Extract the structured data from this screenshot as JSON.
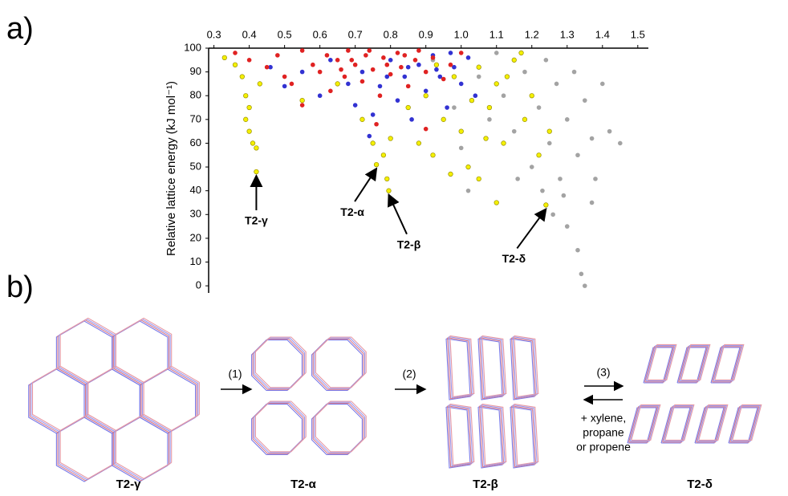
{
  "panel_labels": [
    "a)",
    "b)"
  ],
  "chart_data": {
    "type": "scatter",
    "y_label": "Relative lattice energy (kJ mol⁻¹)",
    "xlim": [
      0.285,
      1.53
    ],
    "ylim": [
      -3,
      100
    ],
    "xticks": [
      0.3,
      0.4,
      0.5,
      0.6,
      0.7,
      0.8,
      0.9,
      {
        "value": 1,
        "label": "1.0"
      },
      1.1,
      1.2,
      1.3,
      1.4,
      1.5
    ],
    "yticks": [
      0,
      10,
      20,
      30,
      40,
      50,
      60,
      70,
      80,
      90,
      100
    ],
    "series": [
      {
        "color": "#a3a3a3",
        "x": [
          0.92,
          0.98,
          1.0,
          1.02,
          1.05,
          1.08,
          1.1,
          1.12,
          1.15,
          1.18,
          1.2,
          1.22,
          1.24,
          1.25,
          1.27,
          1.28,
          1.3,
          1.3,
          1.32,
          1.33,
          1.33,
          1.34,
          1.35,
          1.35,
          1.37,
          1.38,
          1.4,
          1.42,
          1.45,
          1.37,
          1.29,
          1.26,
          1.16,
          1.23
        ],
        "values": [
          95,
          75,
          58,
          40,
          88,
          70,
          98,
          80,
          65,
          90,
          50,
          75,
          95,
          60,
          85,
          45,
          70,
          25,
          90,
          15,
          55,
          5,
          0,
          78,
          62,
          45,
          85,
          65,
          60,
          35,
          38,
          30,
          45,
          40
        ]
      },
      {
        "color": "#f4f000",
        "x": [
          0.33,
          0.36,
          0.38,
          0.39,
          0.39,
          0.4,
          0.41,
          0.42,
          0.42,
          0.4,
          0.43,
          0.76,
          0.78,
          0.79,
          0.795,
          0.55,
          0.65,
          0.72,
          0.75,
          0.8,
          0.85,
          0.88,
          0.9,
          0.92,
          0.95,
          0.98,
          1.0,
          1.02,
          1.05,
          1.08,
          1.1,
          1.12,
          1.15,
          1.18,
          1.2,
          1.22,
          1.24,
          1.25,
          1.1,
          1.05,
          0.97,
          1.13,
          1.17,
          1.03,
          0.93,
          1.07
        ],
        "values": [
          96,
          93,
          88,
          80,
          70,
          65,
          60,
          58,
          48,
          75,
          85,
          51,
          55,
          45,
          40,
          78,
          85,
          70,
          60,
          62,
          75,
          60,
          80,
          55,
          70,
          88,
          65,
          50,
          92,
          75,
          85,
          60,
          95,
          70,
          80,
          55,
          34,
          65,
          35,
          45,
          47,
          88,
          98,
          78,
          93,
          62
        ]
      },
      {
        "color": "#3232d2",
        "x": [
          0.46,
          0.5,
          0.55,
          0.6,
          0.63,
          0.68,
          0.7,
          0.72,
          0.75,
          0.77,
          0.8,
          0.82,
          0.84,
          0.86,
          0.88,
          0.9,
          0.92,
          0.94,
          0.96,
          0.98,
          1.0,
          1.02,
          1.04,
          0.74,
          0.85,
          0.93,
          0.97,
          0.79
        ],
        "values": [
          92,
          84,
          90,
          80,
          95,
          85,
          76,
          90,
          72,
          84,
          95,
          78,
          88,
          70,
          93,
          82,
          97,
          88,
          75,
          92,
          85,
          96,
          80,
          63,
          92,
          91,
          98,
          88
        ]
      },
      {
        "color": "#e02222",
        "x": [
          0.36,
          0.4,
          0.45,
          0.48,
          0.5,
          0.52,
          0.55,
          0.55,
          0.58,
          0.6,
          0.62,
          0.63,
          0.65,
          0.67,
          0.68,
          0.7,
          0.72,
          0.73,
          0.75,
          0.77,
          0.78,
          0.8,
          0.82,
          0.83,
          0.85,
          0.87,
          0.88,
          0.9,
          0.92,
          0.95,
          0.97,
          1.0,
          0.69,
          0.74,
          0.79,
          0.84,
          0.66,
          0.76,
          0.9
        ],
        "values": [
          98,
          95,
          92,
          97,
          88,
          85,
          99,
          76,
          93,
          90,
          97,
          82,
          95,
          88,
          99,
          93,
          86,
          97,
          91,
          80,
          96,
          89,
          98,
          92,
          84,
          95,
          99,
          90,
          96,
          87,
          93,
          98,
          95,
          99,
          93,
          97,
          91,
          68,
          66
        ]
      }
    ],
    "annotations": [
      {
        "text": "T2-γ",
        "x": 0.42,
        "y": 48
      },
      {
        "text": "T2-α",
        "x": 0.76,
        "y": 51
      },
      {
        "text": "T2-β",
        "x": 0.795,
        "y": 40
      },
      {
        "text": "T2-δ",
        "x": 1.24,
        "y": 34
      }
    ]
  },
  "diagram": {
    "structures": [
      "T2-γ",
      "T2-α",
      "T2-β",
      "T2-δ"
    ],
    "steps": [
      "(1)",
      "(2)",
      "(3)"
    ],
    "reverse_label": [
      "+ xylene,",
      "propane",
      "or propene"
    ]
  }
}
